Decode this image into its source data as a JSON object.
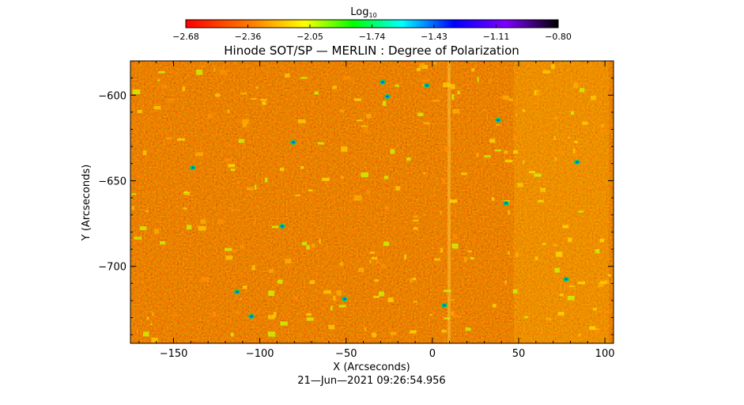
{
  "chart_data": {
    "type": "heatmap",
    "title": "Hinode SOT/SP — MERLIN : Degree of Polarization",
    "xlabel": "X (Arcseconds)",
    "ylabel": "Y (Arcseconds)",
    "timestamp": "21—Jun—2021 09:26:54.956",
    "xlim": [
      -175,
      105
    ],
    "ylim": [
      -745,
      -580
    ],
    "x_ticks": [
      {
        "value": -150,
        "label": "−150"
      },
      {
        "value": -100,
        "label": "−100"
      },
      {
        "value": -50,
        "label": "−50"
      },
      {
        "value": 0,
        "label": "0"
      },
      {
        "value": 50,
        "label": "50"
      },
      {
        "value": 100,
        "label": "100"
      }
    ],
    "y_ticks": [
      {
        "value": -600,
        "label": "−600"
      },
      {
        "value": -650,
        "label": "−650"
      },
      {
        "value": -700,
        "label": "−700"
      }
    ],
    "colorbar": {
      "title": "Log",
      "title_subscript": "10",
      "range": [
        -2.68,
        -0.8
      ],
      "tick_labels": [
        "−2.68",
        "−2.36",
        "−2.05",
        "−1.74",
        "−1.43",
        "−1.11",
        "−0.80"
      ],
      "colormap": [
        "#ff0000",
        "#ff8000",
        "#ffff00",
        "#00ff00",
        "#00ffff",
        "#0000ff",
        "#8000ff",
        "#000000"
      ]
    }
  }
}
